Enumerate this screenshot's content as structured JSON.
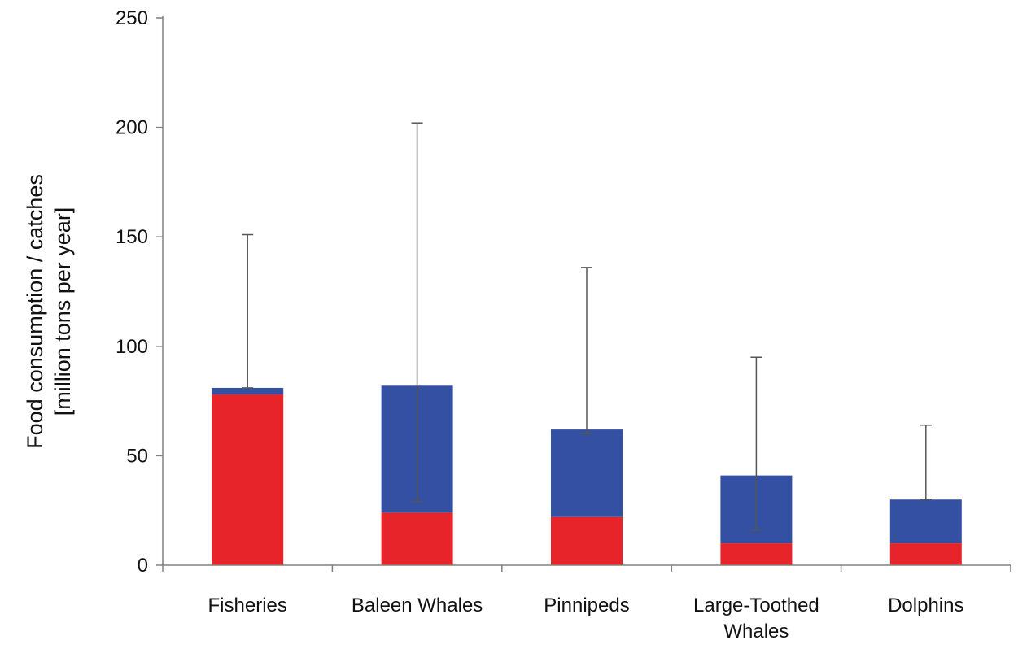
{
  "chart_data": {
    "type": "bar",
    "stacked": true,
    "title": "",
    "xlabel": "",
    "ylabel": [
      "Food consumption / catches",
      "[million tons per year]"
    ],
    "ylim": [
      0,
      250
    ],
    "yticks": [
      0,
      50,
      100,
      150,
      200,
      250
    ],
    "grid": false,
    "legend": "none",
    "categories": [
      [
        "Fisheries"
      ],
      [
        "Baleen Whales"
      ],
      [
        "Pinnipeds"
      ],
      [
        "Large-Toothed",
        "Whales"
      ],
      [
        "Dolphins"
      ]
    ],
    "series": [
      {
        "color": "#e8242b",
        "values": [
          78,
          24,
          22,
          10,
          10
        ]
      },
      {
        "color": "#3450a2",
        "values": [
          3,
          58,
          40,
          31,
          20
        ]
      }
    ],
    "error_bars": {
      "color": "#555555",
      "low": [
        81,
        29,
        60,
        16,
        30
      ],
      "high": [
        151,
        202,
        136,
        95,
        64
      ]
    },
    "axis_color": "#808080"
  }
}
